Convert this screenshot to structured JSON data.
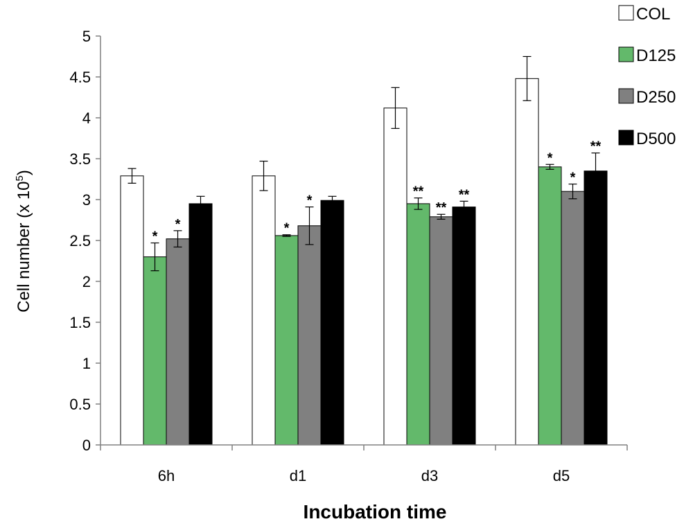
{
  "chart_data": {
    "type": "bar",
    "title": "",
    "xlabel": "Incubation time",
    "ylabel": "Cell number (x 10",
    "ylabel_superscript": "5",
    "ylabel_suffix": ")",
    "ylim": [
      0,
      5
    ],
    "yticks": [
      0,
      0.5,
      1,
      1.5,
      2,
      2.5,
      3,
      3.5,
      4,
      4.5,
      5
    ],
    "ytick_labels": [
      "0",
      "0.5",
      "1",
      "1.5",
      "2",
      "2.5",
      "3",
      "3.5",
      "4",
      "4.5",
      "5"
    ],
    "categories": [
      "6h",
      "d1",
      "d3",
      "d5"
    ],
    "legend_position": "top-right",
    "series": [
      {
        "name": "COL",
        "color": "#ffffff",
        "values": [
          3.29,
          3.29,
          4.12,
          4.48
        ],
        "errors": [
          0.09,
          0.18,
          0.25,
          0.27
        ],
        "significance": [
          "",
          "",
          "",
          ""
        ]
      },
      {
        "name": "D125",
        "color": "#63b96b",
        "values": [
          2.3,
          2.56,
          2.95,
          3.4
        ],
        "errors": [
          0.17,
          0.01,
          0.07,
          0.03
        ],
        "significance": [
          "*",
          "*",
          "**",
          "*"
        ]
      },
      {
        "name": "D250",
        "color": "#808080",
        "values": [
          2.52,
          2.68,
          2.79,
          3.1
        ],
        "errors": [
          0.1,
          0.23,
          0.03,
          0.09
        ],
        "significance": [
          "*",
          "*",
          "**",
          "*"
        ]
      },
      {
        "name": "D500",
        "color": "#000000",
        "values": [
          2.95,
          2.99,
          2.91,
          3.35
        ],
        "errors": [
          0.09,
          0.05,
          0.07,
          0.22
        ],
        "significance": [
          "",
          "",
          "**",
          "**"
        ]
      }
    ]
  }
}
